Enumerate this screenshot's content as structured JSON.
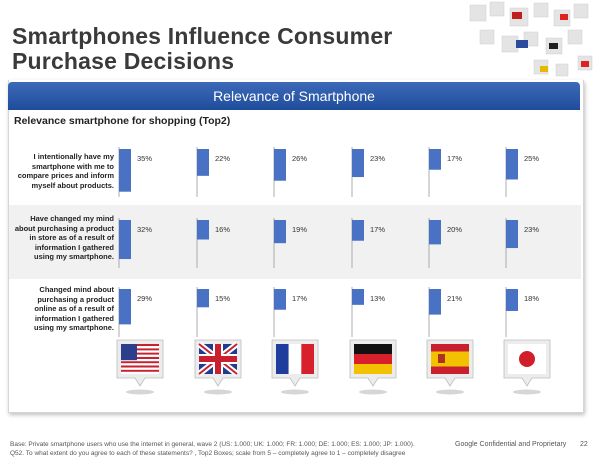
{
  "title": "Smartphones Influence Consumer Purchase Decisions",
  "banner": "Relevance of Smartphone",
  "subtitle": "Relevance smartphone for shopping (Top2)",
  "chart_data": {
    "type": "bar",
    "title": "Relevance smartphone for shopping (Top2)",
    "categories": [
      "US",
      "UK",
      "FR",
      "DE",
      "ES",
      "JP"
    ],
    "flag_icons": [
      "us-flag-icon",
      "uk-flag-icon",
      "france-flag-icon",
      "germany-flag-icon",
      "spain-flag-icon",
      "japan-flag-icon"
    ],
    "series": [
      {
        "name": "I intentionally have my smartphone with me to compare prices and inform myself about products.",
        "values": [
          35,
          22,
          26,
          23,
          17,
          25
        ],
        "labels": [
          "35%",
          "22%",
          "26%",
          "23%",
          "17%",
          "25%"
        ]
      },
      {
        "name": "Have changed my mind about purchasing a product in store as of a result of information I gathered using my smartphone.",
        "values": [
          32,
          16,
          19,
          17,
          20,
          23
        ],
        "labels": [
          "32%",
          "16%",
          "19%",
          "17%",
          "20%",
          "23%"
        ]
      },
      {
        "name": "Changed mind about purchasing a product online as of a result of information I gathered using my smartphone.",
        "values": [
          29,
          15,
          17,
          13,
          21,
          18
        ],
        "labels": [
          "29%",
          "15%",
          "17%",
          "13%",
          "21%",
          "18%"
        ]
      }
    ],
    "bar_color": "#4a72c4",
    "ylim": [
      0,
      100
    ]
  },
  "footer": {
    "base": "Base:      Private smartphone users who use the internet in general, wave 2 (US: 1.000; UK: 1.000; FR: 1.000; DE: 1.000; ES: 1.000; JP: 1.000).",
    "question": "Q52.      To what extent do you agree to each of these statements? , Top2 Boxes; scale from 5 – completely agree to 1 – completely disagree",
    "confidential": "Google Confidential and Proprietary",
    "page": "22"
  },
  "colors": {
    "banner": "#2b5aa8",
    "bar": "#4a72c4",
    "row_band": "#f1f1f1"
  }
}
